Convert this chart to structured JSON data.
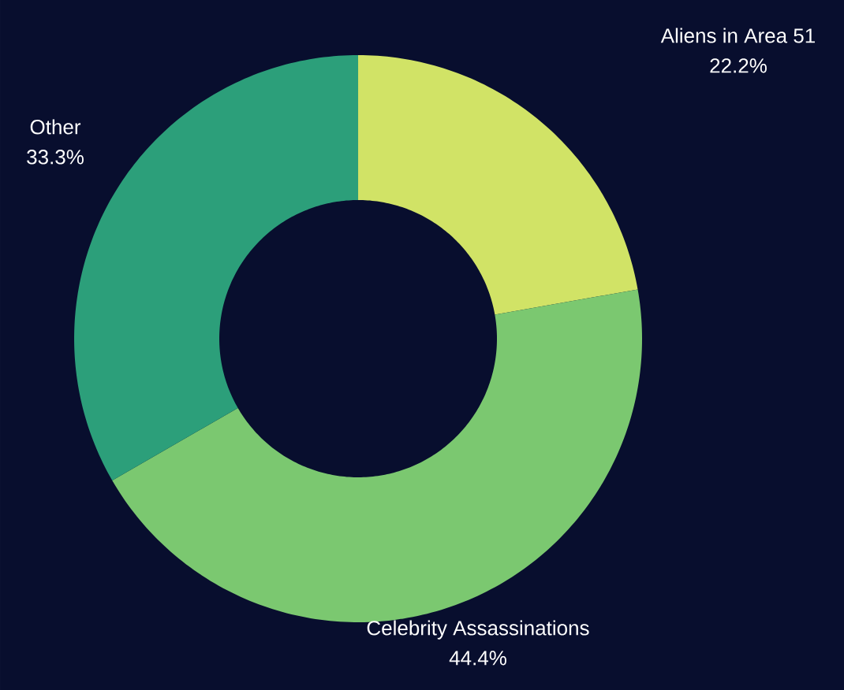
{
  "chart_data": {
    "type": "donut",
    "categories": [
      "Aliens in Area 51",
      "Celebrity Assassinations",
      "Other"
    ],
    "values": [
      22.2,
      44.4,
      33.3
    ],
    "colors": [
      "#d1e366",
      "#7bc870",
      "#2c9f7a"
    ],
    "value_labels": [
      "22.2%",
      "44.4%",
      "33.3%"
    ]
  }
}
